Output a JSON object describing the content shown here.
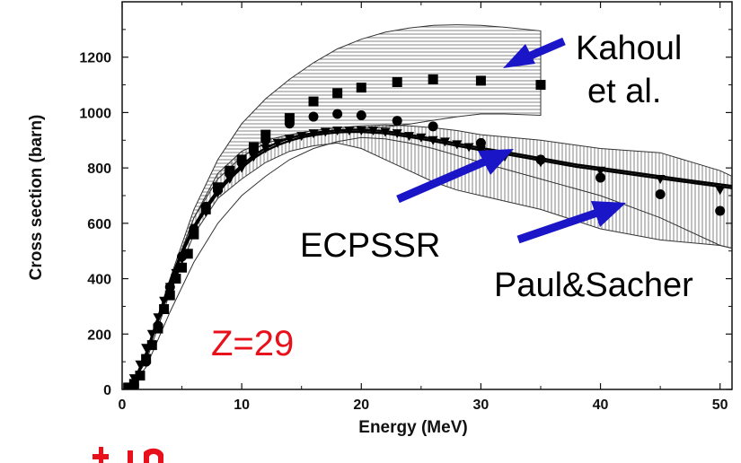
{
  "chart_data": {
    "type": "scatter",
    "xlabel": "Energy (MeV)",
    "ylabel": "Cross section (barn)",
    "xlim": [
      0,
      51
    ],
    "ylim": [
      0,
      1400
    ],
    "xticks": [
      0,
      10,
      20,
      30,
      40,
      50
    ],
    "yticks": [
      0,
      200,
      400,
      600,
      800,
      1000,
      1200
    ],
    "grid": false,
    "annotations": {
      "kahoul_line1": "Kahoul",
      "kahoul_line2": "et al.",
      "ecpssr": "ECPSSR",
      "paul_sacher": "Paul&Sacher",
      "element": "Z=29"
    },
    "arrow_color": "#1a16c8",
    "element_color": "#e8101a",
    "bands": [
      {
        "pattern": "horizontal-hatch",
        "upper": [
          [
            0.5,
            0
          ],
          [
            2,
            120
          ],
          [
            4,
            400
          ],
          [
            6,
            650
          ],
          [
            8,
            830
          ],
          [
            10,
            960
          ],
          [
            12,
            1050
          ],
          [
            14,
            1120
          ],
          [
            16,
            1180
          ],
          [
            18,
            1230
          ],
          [
            20,
            1265
          ],
          [
            22,
            1290
          ],
          [
            24,
            1305
          ],
          [
            26,
            1315
          ],
          [
            28,
            1317
          ],
          [
            30,
            1315
          ],
          [
            32,
            1308
          ],
          [
            35,
            1295
          ]
        ],
        "lower": [
          [
            35,
            990
          ],
          [
            32,
            995
          ],
          [
            30,
            995
          ],
          [
            28,
            985
          ],
          [
            26,
            972
          ],
          [
            24,
            958
          ],
          [
            22,
            948
          ],
          [
            20,
            942
          ],
          [
            18,
            935
          ],
          [
            16,
            925
          ],
          [
            14,
            910
          ],
          [
            12,
            890
          ],
          [
            10,
            840
          ],
          [
            8,
            760
          ],
          [
            6,
            620
          ],
          [
            4,
            390
          ],
          [
            2,
            110
          ],
          [
            0.5,
            0
          ]
        ]
      },
      {
        "pattern": "vertical-hatch",
        "upper": [
          [
            0.5,
            0
          ],
          [
            2,
            110
          ],
          [
            4,
            390
          ],
          [
            6,
            620
          ],
          [
            8,
            780
          ],
          [
            10,
            860
          ],
          [
            12,
            900
          ],
          [
            14,
            920
          ],
          [
            16,
            935
          ],
          [
            18,
            945
          ],
          [
            20,
            952
          ],
          [
            22,
            955
          ],
          [
            24,
            952
          ],
          [
            26,
            945
          ],
          [
            28,
            935
          ],
          [
            30,
            920
          ],
          [
            35,
            900
          ],
          [
            40,
            870
          ],
          [
            45,
            855
          ],
          [
            50,
            790
          ],
          [
            51,
            770
          ]
        ],
        "lower": [
          [
            51,
            510
          ],
          [
            50,
            520
          ],
          [
            45,
            540
          ],
          [
            40,
            580
          ],
          [
            35,
            650
          ],
          [
            30,
            700
          ],
          [
            28,
            720
          ],
          [
            26,
            750
          ],
          [
            24,
            790
          ],
          [
            22,
            830
          ],
          [
            20,
            870
          ],
          [
            18,
            890
          ],
          [
            16,
            880
          ],
          [
            14,
            860
          ],
          [
            12,
            820
          ],
          [
            10,
            760
          ],
          [
            8,
            690
          ],
          [
            6,
            560
          ],
          [
            4,
            350
          ],
          [
            2,
            100
          ],
          [
            0.5,
            0
          ]
        ]
      },
      {
        "pattern": "outer-envelope",
        "lower": [
          [
            0.5,
            0
          ],
          [
            2,
            80
          ],
          [
            4,
            280
          ],
          [
            6,
            460
          ],
          [
            8,
            600
          ],
          [
            10,
            700
          ],
          [
            12,
            770
          ],
          [
            14,
            830
          ],
          [
            16,
            870
          ],
          [
            18,
            895
          ],
          [
            20,
            910
          ],
          [
            22,
            905
          ],
          [
            24,
            890
          ],
          [
            26,
            870
          ],
          [
            28,
            845
          ],
          [
            30,
            820
          ],
          [
            35,
            760
          ],
          [
            40,
            700
          ],
          [
            45,
            620
          ],
          [
            50,
            520
          ],
          [
            51,
            510
          ]
        ]
      }
    ],
    "series": [
      {
        "name": "Kahoul",
        "marker": "square",
        "x": [
          0.5,
          1,
          1.5,
          2,
          2.5,
          3,
          3.5,
          4,
          4.5,
          5,
          5.5,
          6,
          7,
          8,
          9,
          10,
          11,
          12,
          14,
          16,
          18,
          20,
          23,
          26,
          30,
          35
        ],
        "y": [
          5,
          20,
          50,
          110,
          160,
          220,
          290,
          340,
          400,
          440,
          490,
          560,
          650,
          730,
          790,
          830,
          875,
          920,
          980,
          1040,
          1070,
          1090,
          1110,
          1120,
          1115,
          1100
        ]
      },
      {
        "name": "circles",
        "marker": "circle",
        "x": [
          1,
          2,
          3,
          4,
          5,
          6,
          7,
          8,
          9,
          10,
          11,
          12,
          14,
          16,
          18,
          20,
          23,
          26,
          30,
          35,
          40,
          45,
          50
        ],
        "y": [
          15,
          100,
          230,
          370,
          480,
          580,
          660,
          720,
          780,
          830,
          860,
          900,
          960,
          985,
          995,
          990,
          970,
          950,
          890,
          830,
          765,
          705,
          645
        ]
      },
      {
        "name": "triangles",
        "marker": "triangle-down",
        "x": [
          0.5,
          1,
          1.5,
          2,
          2.5,
          3,
          3.5,
          4,
          4.5,
          5,
          6,
          7,
          8,
          9,
          10,
          11,
          12,
          13,
          14,
          15,
          16,
          17,
          18,
          19,
          20,
          21,
          22,
          23,
          24,
          25,
          26,
          27,
          28,
          29,
          30,
          32,
          35,
          40,
          45,
          50
        ],
        "y": [
          10,
          40,
          90,
          150,
          200,
          260,
          320,
          370,
          420,
          470,
          560,
          640,
          710,
          760,
          800,
          840,
          870,
          890,
          905,
          915,
          925,
          930,
          935,
          935,
          935,
          935,
          930,
          925,
          915,
          910,
          900,
          895,
          885,
          875,
          865,
          840,
          820,
          790,
          760,
          720
        ]
      },
      {
        "name": "ECPSSR",
        "marker": "line",
        "x": [
          0.5,
          1,
          2,
          3,
          4,
          5,
          6,
          7,
          8,
          9,
          10,
          11,
          12,
          13,
          14,
          15,
          16,
          17,
          18,
          19,
          20,
          22,
          24,
          26,
          28,
          30,
          32,
          35,
          38,
          40,
          42,
          45,
          48,
          51
        ],
        "y": [
          5,
          30,
          130,
          260,
          390,
          500,
          590,
          660,
          720,
          770,
          810,
          845,
          872,
          892,
          908,
          918,
          926,
          932,
          936,
          938,
          938,
          933,
          920,
          905,
          888,
          872,
          858,
          835,
          812,
          800,
          788,
          770,
          752,
          735
        ]
      },
      {
        "name": "Paul&Sacher",
        "marker": "line",
        "x": [
          0.5,
          1,
          2,
          3,
          4,
          5,
          6,
          7,
          8,
          9,
          10,
          11,
          12,
          13,
          14,
          15,
          16,
          17,
          18,
          19,
          20,
          22,
          24,
          26,
          28,
          30,
          32,
          35,
          38,
          40,
          42,
          45,
          48,
          51
        ],
        "y": [
          0,
          25,
          120,
          250,
          380,
          490,
          580,
          650,
          710,
          760,
          800,
          835,
          862,
          882,
          898,
          910,
          918,
          924,
          928,
          930,
          930,
          925,
          912,
          897,
          880,
          864,
          850,
          827,
          804,
          792,
          780,
          762,
          744,
          727
        ]
      }
    ]
  }
}
